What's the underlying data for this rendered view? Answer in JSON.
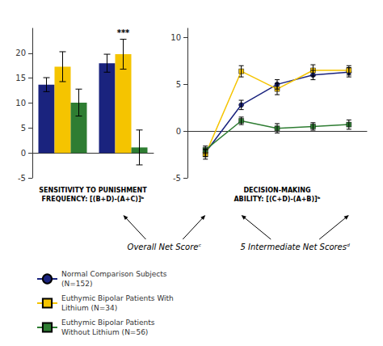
{
  "chart_data": [
    {
      "type": "bar",
      "xlabel": "SENSITIVITY TO PUNISHMENT\nFREQUENCY: [(B+D)-(A+C)]ᵇ",
      "categories": [
        null,
        null
      ],
      "series": [
        {
          "name": "Normal Comparison Subjects\n(N=152)",
          "color": "#1a237e",
          "values": [
            13.7,
            18.0
          ],
          "errors": [
            1.4,
            1.8
          ]
        },
        {
          "name": "Euthymic Bipolar Patients With\nLithium (N=34)",
          "color": "#f5c400",
          "values": [
            17.3,
            19.8
          ],
          "errors": [
            3.0,
            3.0
          ]
        },
        {
          "name": "Euthymic Bipolar Patients\nWithout Lithium (N=56)",
          "color": "#2e7d32",
          "values": [
            10.1,
            1.1
          ],
          "errors": [
            2.7,
            3.5
          ]
        }
      ],
      "ylim": [
        -5,
        25
      ],
      "yticks": [
        -5,
        0,
        5,
        10,
        15,
        20
      ],
      "grid": false,
      "tick_labels": "y",
      "annotations": [
        {
          "text": "***"
        }
      ]
    },
    {
      "type": "line",
      "xlabel": "DECISION-MAKING\nABILITY: [(C+D)-(A+B)]ᵇ",
      "x": [
        1,
        2,
        3,
        4,
        5
      ],
      "series": [
        {
          "name": "Normal Comparison Subjects\n(N=152)",
          "color": "#1a237e",
          "marker": "circle",
          "values": [
            -2.3,
            2.8,
            5.0,
            6.0,
            6.3
          ],
          "errors": [
            0.4,
            0.5,
            0.5,
            0.5,
            0.5
          ]
        },
        {
          "name": "Euthymic Bipolar Patients With\nLithium (N=34)",
          "color": "#f5c400",
          "marker": "square",
          "values": [
            -2.5,
            6.4,
            4.5,
            6.5,
            6.5
          ],
          "errors": [
            0.5,
            0.6,
            0.6,
            0.6,
            0.5
          ]
        },
        {
          "name": "Euthymic Bipolar Patients\nWithout Lithium (N=56)",
          "color": "#2e7d32",
          "marker": "square",
          "values": [
            -2.0,
            1.1,
            0.3,
            0.5,
            0.7
          ],
          "errors": [
            0.4,
            0.4,
            0.5,
            0.4,
            0.5
          ]
        }
      ],
      "xlim": [
        0.5,
        5.5
      ],
      "xticks": [],
      "ylim": [
        -5,
        11
      ],
      "yticks": [
        -5,
        0,
        5,
        10
      ],
      "grid": false,
      "tick_labels": "y",
      "legend": "bottom",
      "annotations": [
        {
          "text": "Overall Net Scoreᶜ"
        },
        {
          "text": "5 Intermediate Net Scoresᵈ"
        }
      ]
    }
  ]
}
